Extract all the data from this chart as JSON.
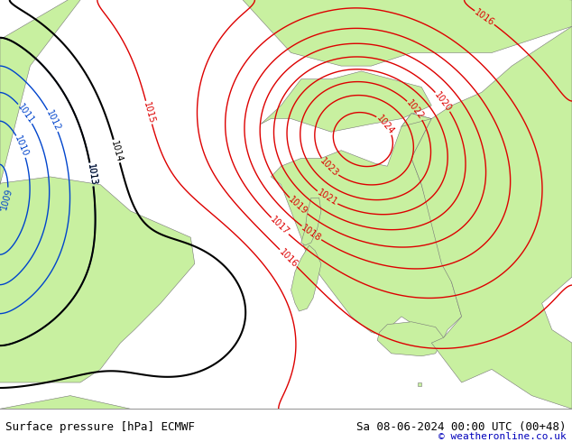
{
  "title_left": "Surface pressure [hPa] ECMWF",
  "title_right": "Sa 08-06-2024 00:00 UTC (00+48)",
  "copyright": "© weatheronline.co.uk",
  "bg_color": "#b8cfe8",
  "land_color": "#c8f0a0",
  "footer_bg": "#ffffff",
  "text_color_black": "#000000",
  "text_color_blue": "#0000bb",
  "isobar_red_color": "#dd0000",
  "isobar_black_color": "#000000",
  "isobar_blue_color": "#0044cc",
  "figsize": [
    6.34,
    4.9
  ],
  "dpi": 100,
  "lon_min": -6.5,
  "lon_max": 22.0,
  "lat_min": 35.0,
  "lat_max": 50.5
}
